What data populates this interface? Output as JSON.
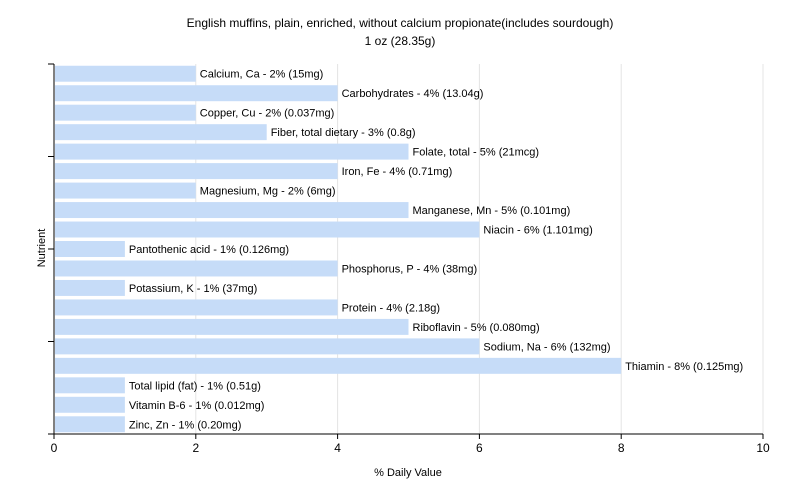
{
  "chart_data": {
    "type": "bar",
    "orientation": "horizontal",
    "title": "English muffins, plain, enriched, without calcium propionate(includes sourdough)",
    "subtitle": "1 oz (28.35g)",
    "xlabel": "% Daily Value",
    "ylabel": "Nutrient",
    "xlim": [
      0,
      10
    ],
    "xticks": [
      0,
      2,
      4,
      6,
      8,
      10
    ],
    "grid": true,
    "bar_color": "#c6dcf8",
    "categories": [
      "Calcium, Ca",
      "Carbohydrates",
      "Copper, Cu",
      "Fiber, total dietary",
      "Folate, total",
      "Iron, Fe",
      "Magnesium, Mg",
      "Manganese, Mn",
      "Niacin",
      "Pantothenic acid",
      "Phosphorus, P",
      "Potassium, K",
      "Protein",
      "Riboflavin",
      "Sodium, Na",
      "Thiamin",
      "Total lipid (fat)",
      "Vitamin B-6",
      "Zinc, Zn"
    ],
    "values": [
      2,
      4,
      2,
      3,
      5,
      4,
      2,
      5,
      6,
      1,
      4,
      1,
      4,
      5,
      6,
      8,
      1,
      1,
      1
    ],
    "data_labels": [
      "Calcium, Ca - 2% (15mg)",
      "Carbohydrates - 4% (13.04g)",
      "Copper, Cu - 2% (0.037mg)",
      "Fiber, total dietary - 3% (0.8g)",
      "Folate, total - 5% (21mcg)",
      "Iron, Fe - 4% (0.71mg)",
      "Magnesium, Mg - 2% (6mg)",
      "Manganese, Mn - 5% (0.101mg)",
      "Niacin - 6% (1.101mg)",
      "Pantothenic acid - 1% (0.126mg)",
      "Phosphorus, P - 4% (38mg)",
      "Potassium, K - 1% (37mg)",
      "Protein - 4% (2.18g)",
      "Riboflavin - 5% (0.080mg)",
      "Sodium, Na - 6% (132mg)",
      "Thiamin - 8% (0.125mg)",
      "Total lipid (fat) - 1% (0.51g)",
      "Vitamin B-6 - 1% (0.012mg)",
      "Zinc, Zn - 1% (0.20mg)"
    ]
  }
}
